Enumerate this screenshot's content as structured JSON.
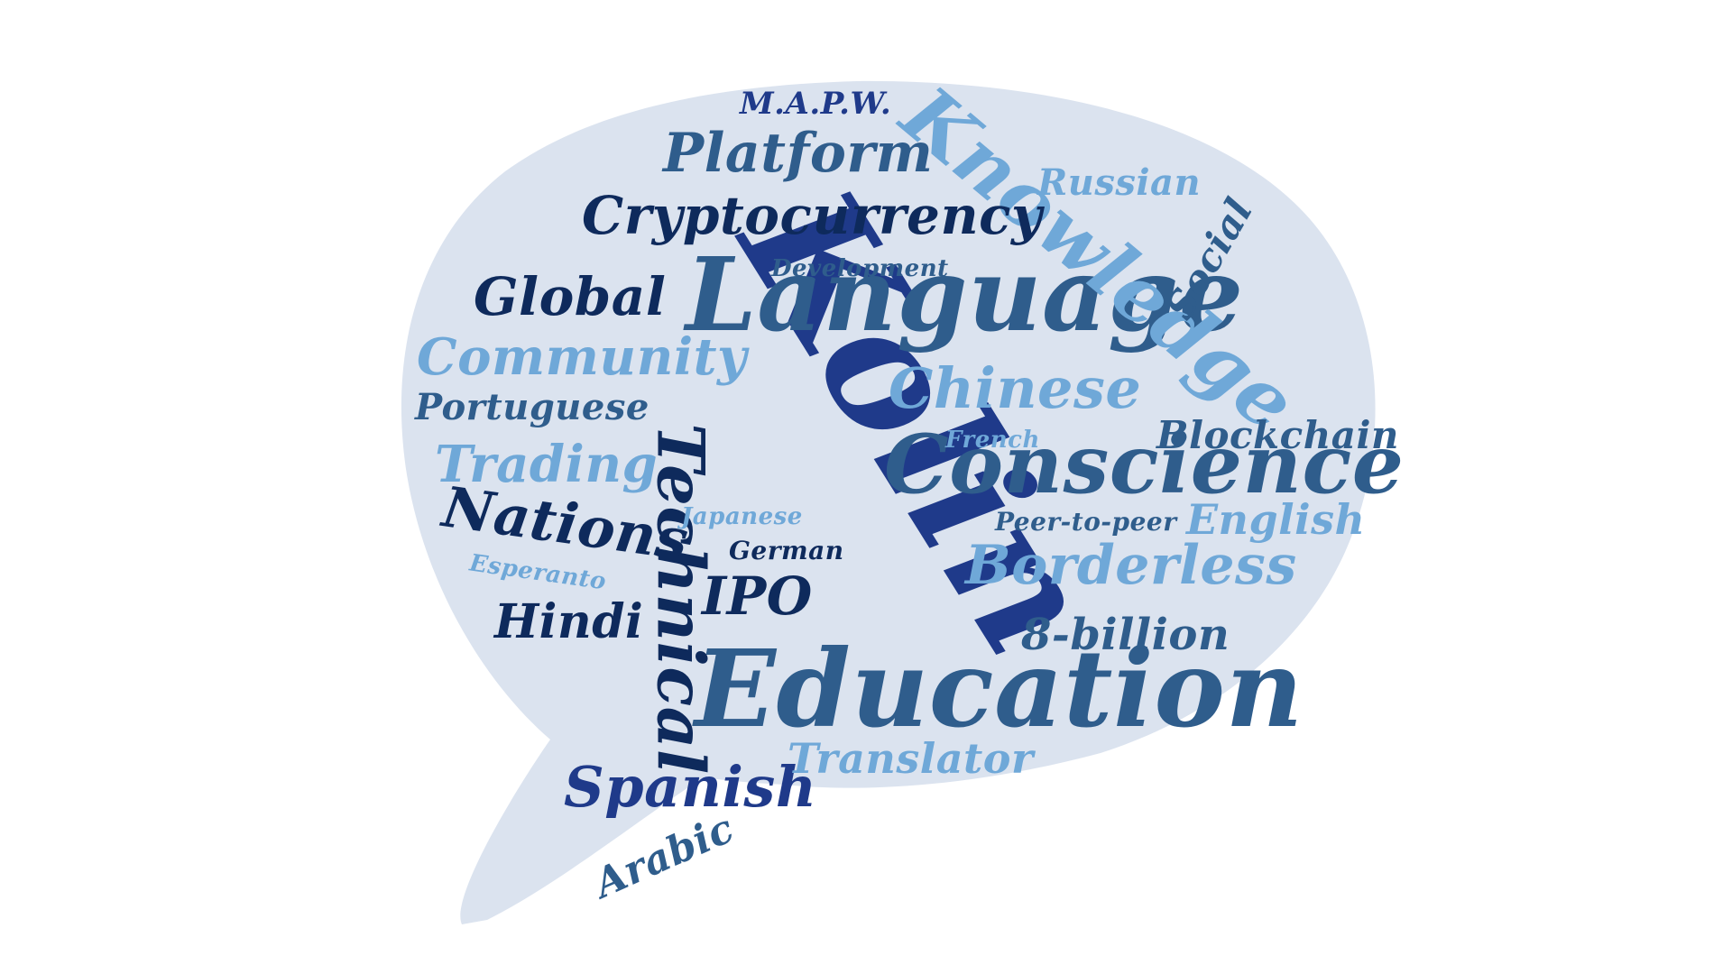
{
  "words": [
    {
      "key": "kolin",
      "text": "Kolin",
      "color": "#1f3a8a"
    },
    {
      "key": "education",
      "text": "Education",
      "color": "#2f5d8c"
    },
    {
      "key": "language",
      "text": "Language",
      "color": "#2f5d8c"
    },
    {
      "key": "knowledge",
      "text": "Knowledge",
      "color": "#6fa8d8"
    },
    {
      "key": "conscience",
      "text": "Conscience",
      "color": "#2f5d8c"
    },
    {
      "key": "technical",
      "text": "Technical",
      "color": "#0e2a5c"
    },
    {
      "key": "cryptocurrency",
      "text": "Cryptocurrency",
      "color": "#0e2a5c"
    },
    {
      "key": "platform",
      "text": "Platform",
      "color": "#2f5d8c"
    },
    {
      "key": "chinese",
      "text": "Chinese",
      "color": "#6fa8d8"
    },
    {
      "key": "community",
      "text": "Community",
      "color": "#6fa8d8"
    },
    {
      "key": "borderless",
      "text": "Borderless",
      "color": "#6fa8d8"
    },
    {
      "key": "nations",
      "text": "Nations",
      "color": "#0e2a5c"
    },
    {
      "key": "trading",
      "text": "Trading",
      "color": "#6fa8d8"
    },
    {
      "key": "global",
      "text": "Global",
      "color": "#0e2a5c"
    },
    {
      "key": "spanish",
      "text": "Spanish",
      "color": "#1f3a8a"
    },
    {
      "key": "blockchain",
      "text": "Blockchain",
      "color": "#2f5d8c"
    },
    {
      "key": "english",
      "text": "English",
      "color": "#6fa8d8"
    },
    {
      "key": "portuguese",
      "text": "Portuguese",
      "color": "#2f5d8c"
    },
    {
      "key": "hindi",
      "text": "Hindi",
      "color": "#0e2a5c"
    },
    {
      "key": "ipo",
      "text": "IPO",
      "color": "#0e2a5c"
    },
    {
      "key": "billion",
      "text": "8-billion",
      "color": "#2f5d8c"
    },
    {
      "key": "translator",
      "text": "Translator",
      "color": "#6fa8d8"
    },
    {
      "key": "russian",
      "text": "Russian",
      "color": "#6fa8d8"
    },
    {
      "key": "social",
      "text": "Social",
      "color": "#2f5d8c"
    },
    {
      "key": "arabic",
      "text": "Arabic",
      "color": "#2f5d8c"
    },
    {
      "key": "mapw",
      "text": "M.A.P.W.",
      "color": "#1f3a8a"
    },
    {
      "key": "development",
      "text": "Development",
      "color": "#2f5d8c"
    },
    {
      "key": "peer",
      "text": "Peer-to-peer",
      "color": "#2f5d8c"
    },
    {
      "key": "german",
      "text": "German",
      "color": "#0e2a5c"
    },
    {
      "key": "japanese",
      "text": "Japanese",
      "color": "#6fa8d8"
    },
    {
      "key": "esperanto",
      "text": "Esperanto",
      "color": "#6fa8d8"
    },
    {
      "key": "french",
      "text": "French",
      "color": "#6fa8d8"
    }
  ],
  "bubble_color": "#dbe3ef"
}
